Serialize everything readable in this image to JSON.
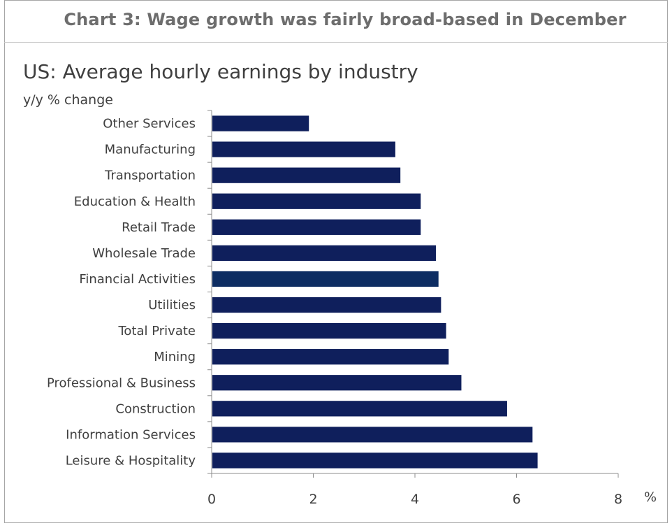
{
  "header": {
    "title": "Chart 3: Wage growth was fairly broad-based in December"
  },
  "chart_data": {
    "type": "bar",
    "orientation": "horizontal",
    "title": "US: Average hourly earnings by industry",
    "ylabel": "y/y % change",
    "xlabel": "%",
    "xlim": [
      0,
      8
    ],
    "xticks": [
      0,
      2,
      4,
      6,
      8
    ],
    "grid": false,
    "categories": [
      "Other Services",
      "Manufacturing",
      "Transportation",
      "Education & Health",
      "Retail Trade",
      "Wholesale Trade",
      "Financial Activities",
      "Utilities",
      "Total Private",
      "Mining",
      "Professional & Business",
      "Construction",
      "Information Services",
      "Leisure & Hospitality"
    ],
    "values": [
      1.9,
      3.6,
      3.7,
      4.1,
      4.1,
      4.4,
      4.45,
      4.5,
      4.6,
      4.65,
      4.9,
      5.8,
      6.3,
      6.4
    ],
    "bar_color": "#0f1f5c",
    "highlight_color": "#0d2d62"
  }
}
